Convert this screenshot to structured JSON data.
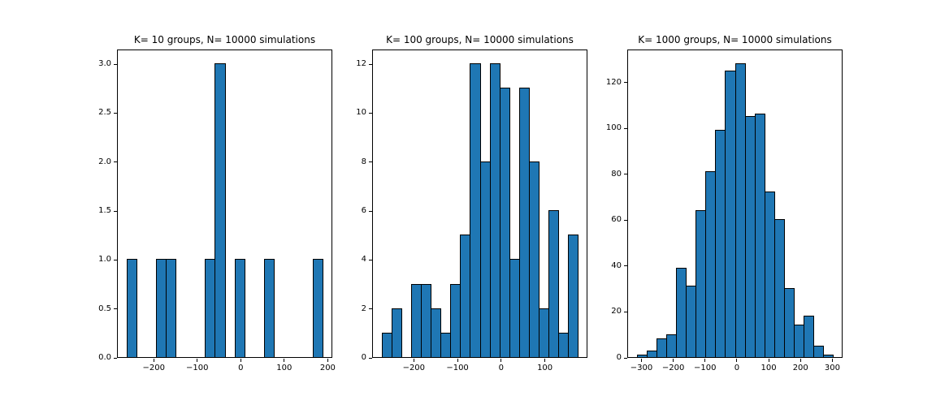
{
  "figure": {
    "background": "#ffffff",
    "bar_color": "#1f77b4",
    "edge_color": "#000000",
    "spine_color": "#000000",
    "text_color": "#000000"
  },
  "chart_data": [
    {
      "type": "bar",
      "subtype": "histogram",
      "title": "K= 10 groups, N= 10000 simulations",
      "xlabel": "",
      "ylabel": "",
      "bin_start": -262,
      "bin_width": 22.5,
      "counts": [
        1,
        0,
        0,
        1,
        1,
        0,
        0,
        0,
        1,
        3,
        0,
        1,
        0,
        0,
        1,
        0,
        0,
        0,
        0,
        1
      ],
      "xlim": [
        -284.5,
        210.5
      ],
      "ylim": [
        0,
        3.15
      ],
      "xtick_vals": [
        -200,
        -100,
        0,
        100,
        200
      ],
      "xtick_labels": [
        "−200",
        "−100",
        "0",
        "100",
        "200"
      ],
      "ytick_vals": [
        0,
        0.5,
        1,
        1.5,
        2,
        2.5,
        3
      ],
      "ytick_labels": [
        "0.0",
        "0.5",
        "1.0",
        "1.5",
        "2.0",
        "2.5",
        "3.0"
      ],
      "grid": false,
      "legend": null
    },
    {
      "type": "bar",
      "subtype": "histogram",
      "title": "K= 100 groups, N= 10000 simulations",
      "xlabel": "",
      "ylabel": "",
      "bin_start": -273,
      "bin_width": 22.4,
      "counts": [
        1,
        2,
        0,
        3,
        3,
        2,
        1,
        3,
        5,
        12,
        8,
        12,
        11,
        4,
        11,
        8,
        2,
        6,
        1,
        5
      ],
      "xlim": [
        -295.4,
        197.4
      ],
      "ylim": [
        0,
        12.6
      ],
      "xtick_vals": [
        -200,
        -100,
        0,
        100
      ],
      "xtick_labels": [
        "−200",
        "−100",
        "0",
        "100"
      ],
      "ytick_vals": [
        0,
        2,
        4,
        6,
        8,
        10,
        12
      ],
      "ytick_labels": [
        "0",
        "2",
        "4",
        "6",
        "8",
        "10",
        "12"
      ],
      "grid": false,
      "legend": null
    },
    {
      "type": "bar",
      "subtype": "histogram",
      "title": "K= 1000 groups, N= 10000 simulations",
      "xlabel": "",
      "ylabel": "",
      "bin_start": -313.8,
      "bin_width": 30.76,
      "counts": [
        1,
        3,
        8,
        10,
        39,
        31,
        64,
        81,
        99,
        125,
        128,
        105,
        106,
        72,
        60,
        30,
        14,
        18,
        5,
        1
      ],
      "xlim": [
        -344.6,
        332.2
      ],
      "ylim": [
        0,
        134.4
      ],
      "xtick_vals": [
        -300,
        -200,
        -100,
        0,
        100,
        200,
        300
      ],
      "xtick_labels": [
        "−300",
        "−200",
        "−100",
        "0",
        "100",
        "200",
        "300"
      ],
      "ytick_vals": [
        0,
        20,
        40,
        60,
        80,
        100,
        120
      ],
      "ytick_labels": [
        "0",
        "20",
        "40",
        "60",
        "80",
        "100",
        "120"
      ],
      "grid": false,
      "legend": null
    }
  ]
}
